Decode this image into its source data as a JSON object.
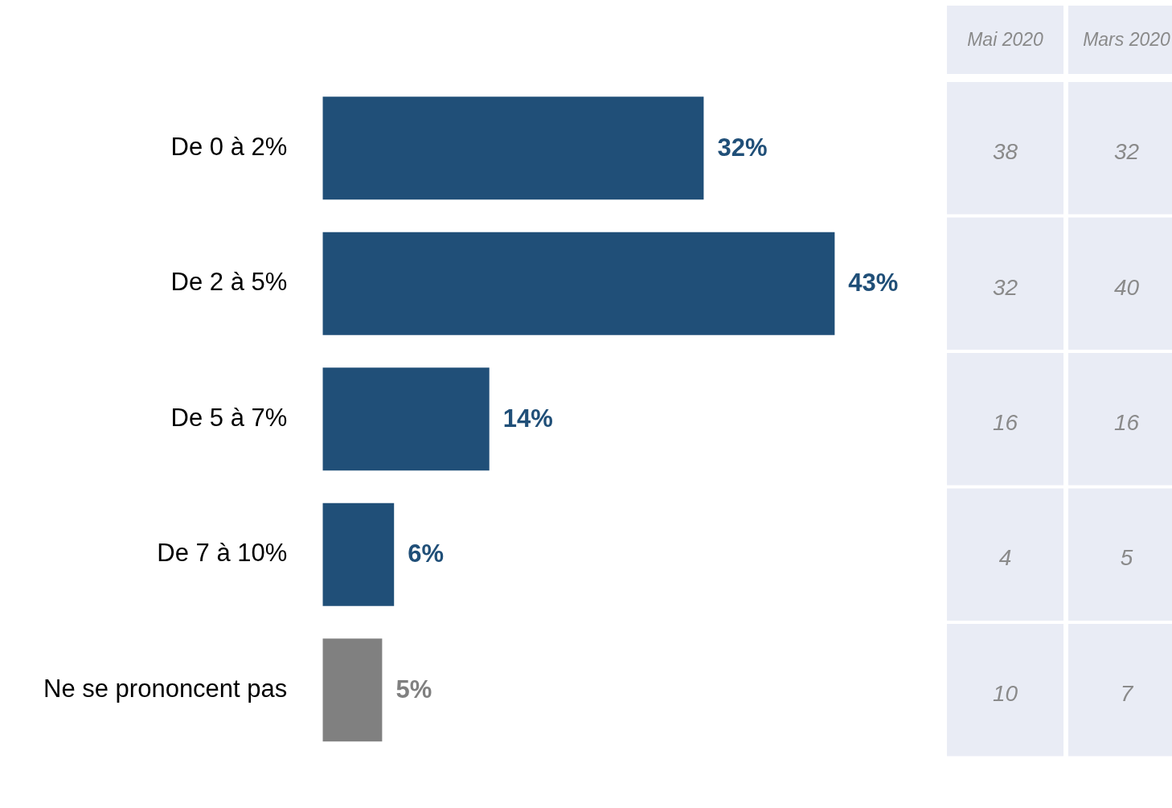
{
  "chart_data": [
    {
      "type": "bar",
      "orientation": "horizontal",
      "categories": [
        "De 0 à 2%",
        "De 2 à 5%",
        "De 5 à 7%",
        "De 7 à 10%",
        "Ne se prononcent pas"
      ],
      "series": [
        {
          "colors": [
            "#204f78",
            "#204f78",
            "#204f78",
            "#204f78",
            "#808080"
          ],
          "values": [
            32,
            43,
            14,
            6,
            5
          ],
          "value_labels": [
            "32%",
            "43%",
            "14%",
            "6%",
            "5%"
          ]
        }
      ],
      "tick_labels": "y",
      "grid": false,
      "legend": false
    },
    {
      "type": "heatmap",
      "categories": [
        "Mai 2020",
        "Mars 2020"
      ],
      "y_categories": [
        null,
        null,
        null,
        null,
        null
      ],
      "cells": [
        [
          38,
          32
        ],
        [
          32,
          40
        ],
        [
          16,
          16
        ],
        [
          4,
          5
        ],
        [
          10,
          7
        ]
      ],
      "data_labels": true
    }
  ]
}
